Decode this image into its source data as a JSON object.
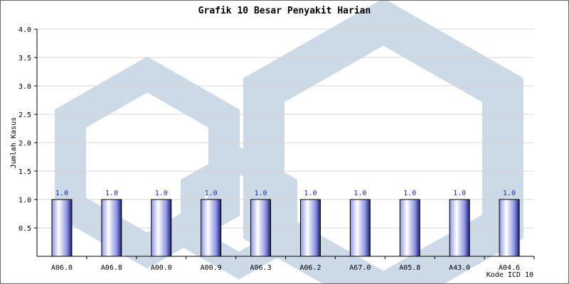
{
  "chart_data": {
    "type": "bar",
    "title": "Grafik 10 Besar Penyakit Harian",
    "xlabel": "Kode ICD 10",
    "ylabel": "Jumlah Kasus",
    "categories": [
      "A06.0",
      "A06.8",
      "A00.0",
      "A00.9",
      "A06.3",
      "A06.2",
      "A67.0",
      "A05.8",
      "A43.0",
      "A04.6"
    ],
    "values": [
      1.0,
      1.0,
      1.0,
      1.0,
      1.0,
      1.0,
      1.0,
      1.0,
      1.0,
      1.0
    ],
    "data_labels": [
      "1.0",
      "1.0",
      "1.0",
      "1.0",
      "1.0",
      "1.0",
      "1.0",
      "1.0",
      "1.0",
      "1.0"
    ],
    "ylim": [
      0,
      4.0
    ],
    "yticks": [
      0.5,
      1.0,
      1.5,
      2.0,
      2.5,
      3.0,
      3.5,
      4.0
    ],
    "ytick_labels": [
      "0.5",
      "1.0",
      "1.5",
      "2.0",
      "2.5",
      "3.0",
      "3.5",
      "4.0"
    ],
    "grid": true,
    "bar_colors": {
      "edge": "#000000",
      "light": "#ffffff",
      "mid": "#8f95e0",
      "dark": "#1a1f7a"
    },
    "watermark_color": "#c7d6e6"
  }
}
